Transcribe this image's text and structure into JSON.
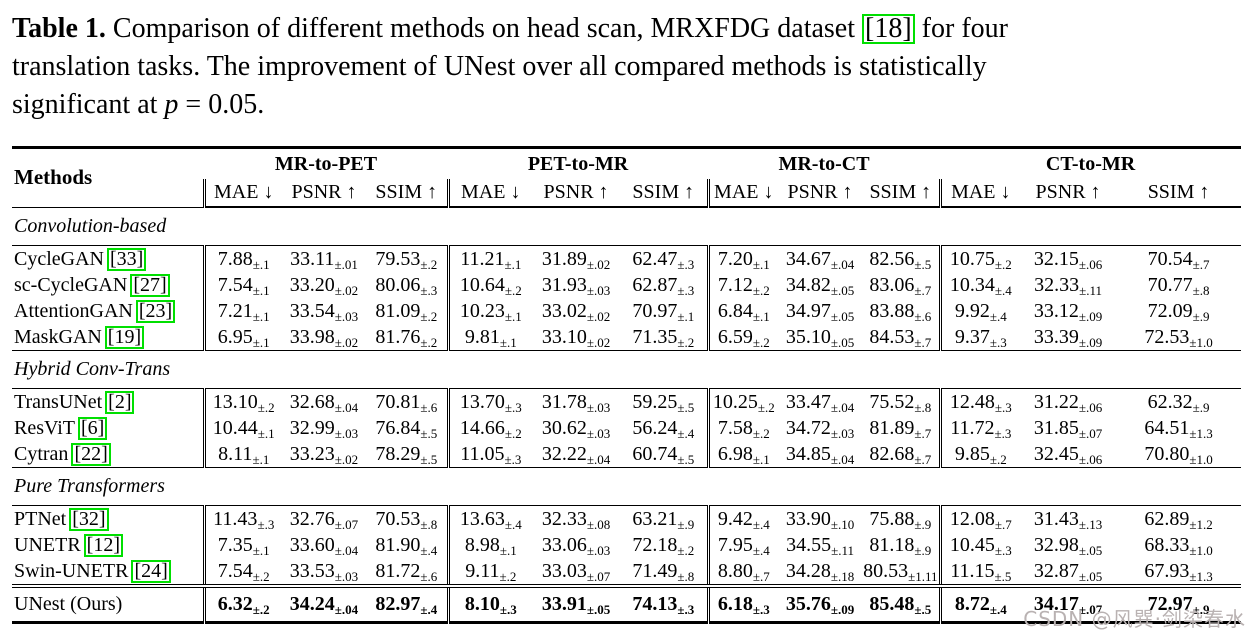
{
  "caption": {
    "label": "Table 1.",
    "line1_pre": "Comparison of different methods on head scan, MRXFDG dataset",
    "cite": "[18]",
    "line1_post": "for four",
    "line2": "translation tasks. The improvement of UNest over all compared methods is statistically",
    "line3_pre": "significant at",
    "p_var": "p",
    "line3_post": "= 0.05."
  },
  "table": {
    "methods_header": "Methods",
    "groups": [
      "MR-to-PET",
      "PET-to-MR",
      "MR-to-CT",
      "CT-to-MR"
    ],
    "metrics": [
      "MAE ↓",
      "PSNR ↑",
      "SSIM ↑"
    ],
    "sections": [
      {
        "title": "Convolution-based",
        "rows": [
          {
            "method": "CycleGAN",
            "cite": "[33]",
            "values": [
              "7.88±.1",
              "33.11±.01",
              "79.53±.2",
              "11.21±.1",
              "31.89±.02",
              "62.47±.3",
              "7.20±.1",
              "34.67±.04",
              "82.56±.5",
              "10.75±.2",
              "32.15±.06",
              "70.54±.7"
            ]
          },
          {
            "method": "sc-CycleGAN",
            "cite": "[27]",
            "values": [
              "7.54±.1",
              "33.20±.02",
              "80.06±.3",
              "10.64±.2",
              "31.93±.03",
              "62.87±.3",
              "7.12±.2",
              "34.82±.05",
              "83.06±.7",
              "10.34±.4",
              "32.33±.11",
              "70.77±.8"
            ]
          },
          {
            "method": "AttentionGAN",
            "cite": "[23]",
            "values": [
              "7.21±.1",
              "33.54±.03",
              "81.09±.2",
              "10.23±.1",
              "33.02±.02",
              "70.97±.1",
              "6.84±.1",
              "34.97±.05",
              "83.88±.6",
              "9.92±.4",
              "33.12±.09",
              "72.09±.9"
            ]
          },
          {
            "method": "MaskGAN",
            "cite": "[19]",
            "values": [
              "6.95±.1",
              "33.98±.02",
              "81.76±.2",
              "9.81±.1",
              "33.10±.02",
              "71.35±.2",
              "6.59±.2",
              "35.10±.05",
              "84.53±.7",
              "9.37±.3",
              "33.39±.09",
              "72.53±1.0"
            ]
          }
        ]
      },
      {
        "title": "Hybrid Conv-Trans",
        "rows": [
          {
            "method": "TransUNet",
            "cite": "[2]",
            "values": [
              "13.10±.2",
              "32.68±.04",
              "70.81±.6",
              "13.70±.3",
              "31.78±.03",
              "59.25±.5",
              "10.25±.2",
              "33.47±.04",
              "75.52±.8",
              "12.48±.3",
              "31.22±.06",
              "62.32±.9"
            ]
          },
          {
            "method": "ResViT",
            "cite": "[6]",
            "values": [
              "10.44±.1",
              "32.99±.03",
              "76.84±.5",
              "14.66±.2",
              "30.62±.03",
              "56.24±.4",
              "7.58±.2",
              "34.72±.03",
              "81.89±.7",
              "11.72±.3",
              "31.85±.07",
              "64.51±1.3"
            ]
          },
          {
            "method": "Cytran",
            "cite": "[22]",
            "values": [
              "8.11±.1",
              "33.23±.02",
              "78.29±.5",
              "11.05±.3",
              "32.22±.04",
              "60.74±.5",
              "6.98±.1",
              "34.85±.04",
              "82.68±.7",
              "9.85±.2",
              "32.45±.06",
              "70.80±1.0"
            ]
          }
        ]
      },
      {
        "title": "Pure Transformers",
        "rows": [
          {
            "method": "PTNet",
            "cite": "[32]",
            "values": [
              "11.43±.3",
              "32.76±.07",
              "70.53±.8",
              "13.63±.4",
              "32.33±.08",
              "63.21±.9",
              "9.42±.4",
              "33.90±.10",
              "75.88±.9",
              "12.08±.7",
              "31.43±.13",
              "62.89±1.2"
            ]
          },
          {
            "method": "UNETR",
            "cite": "[12]",
            "values": [
              "7.35±.1",
              "33.60±.04",
              "81.90±.4",
              "8.98±.1",
              "33.06±.03",
              "72.18±.2",
              "7.95±.4",
              "34.55±.11",
              "81.18±.9",
              "10.45±.3",
              "32.98±.05",
              "68.33±1.0"
            ]
          },
          {
            "method": "Swin-UNETR",
            "cite": "[24]",
            "values": [
              "7.54±.2",
              "33.53±.03",
              "81.72±.6",
              "9.11±.2",
              "33.03±.07",
              "71.49±.8",
              "8.80±.7",
              "34.28±.18",
              "80.53±1.11",
              "11.15±.5",
              "32.87±.05",
              "67.93±1.3"
            ]
          }
        ]
      }
    ],
    "final_row": {
      "method": "UNest (Ours)",
      "cite": null,
      "values": [
        "6.32±.2",
        "34.24±.04",
        "82.97±.4",
        "8.10±.3",
        "33.91±.05",
        "74.13±.3",
        "6.18±.3",
        "35.76±.09",
        "85.48±.5",
        "8.72±.4",
        "34.17±.07",
        "72.97±.9"
      ]
    }
  },
  "watermark": {
    "text": "CSDN @风巽·剑染春水"
  },
  "colors": {
    "cite_green": "#00df00",
    "watermark_gray": "#b9b2b2"
  }
}
